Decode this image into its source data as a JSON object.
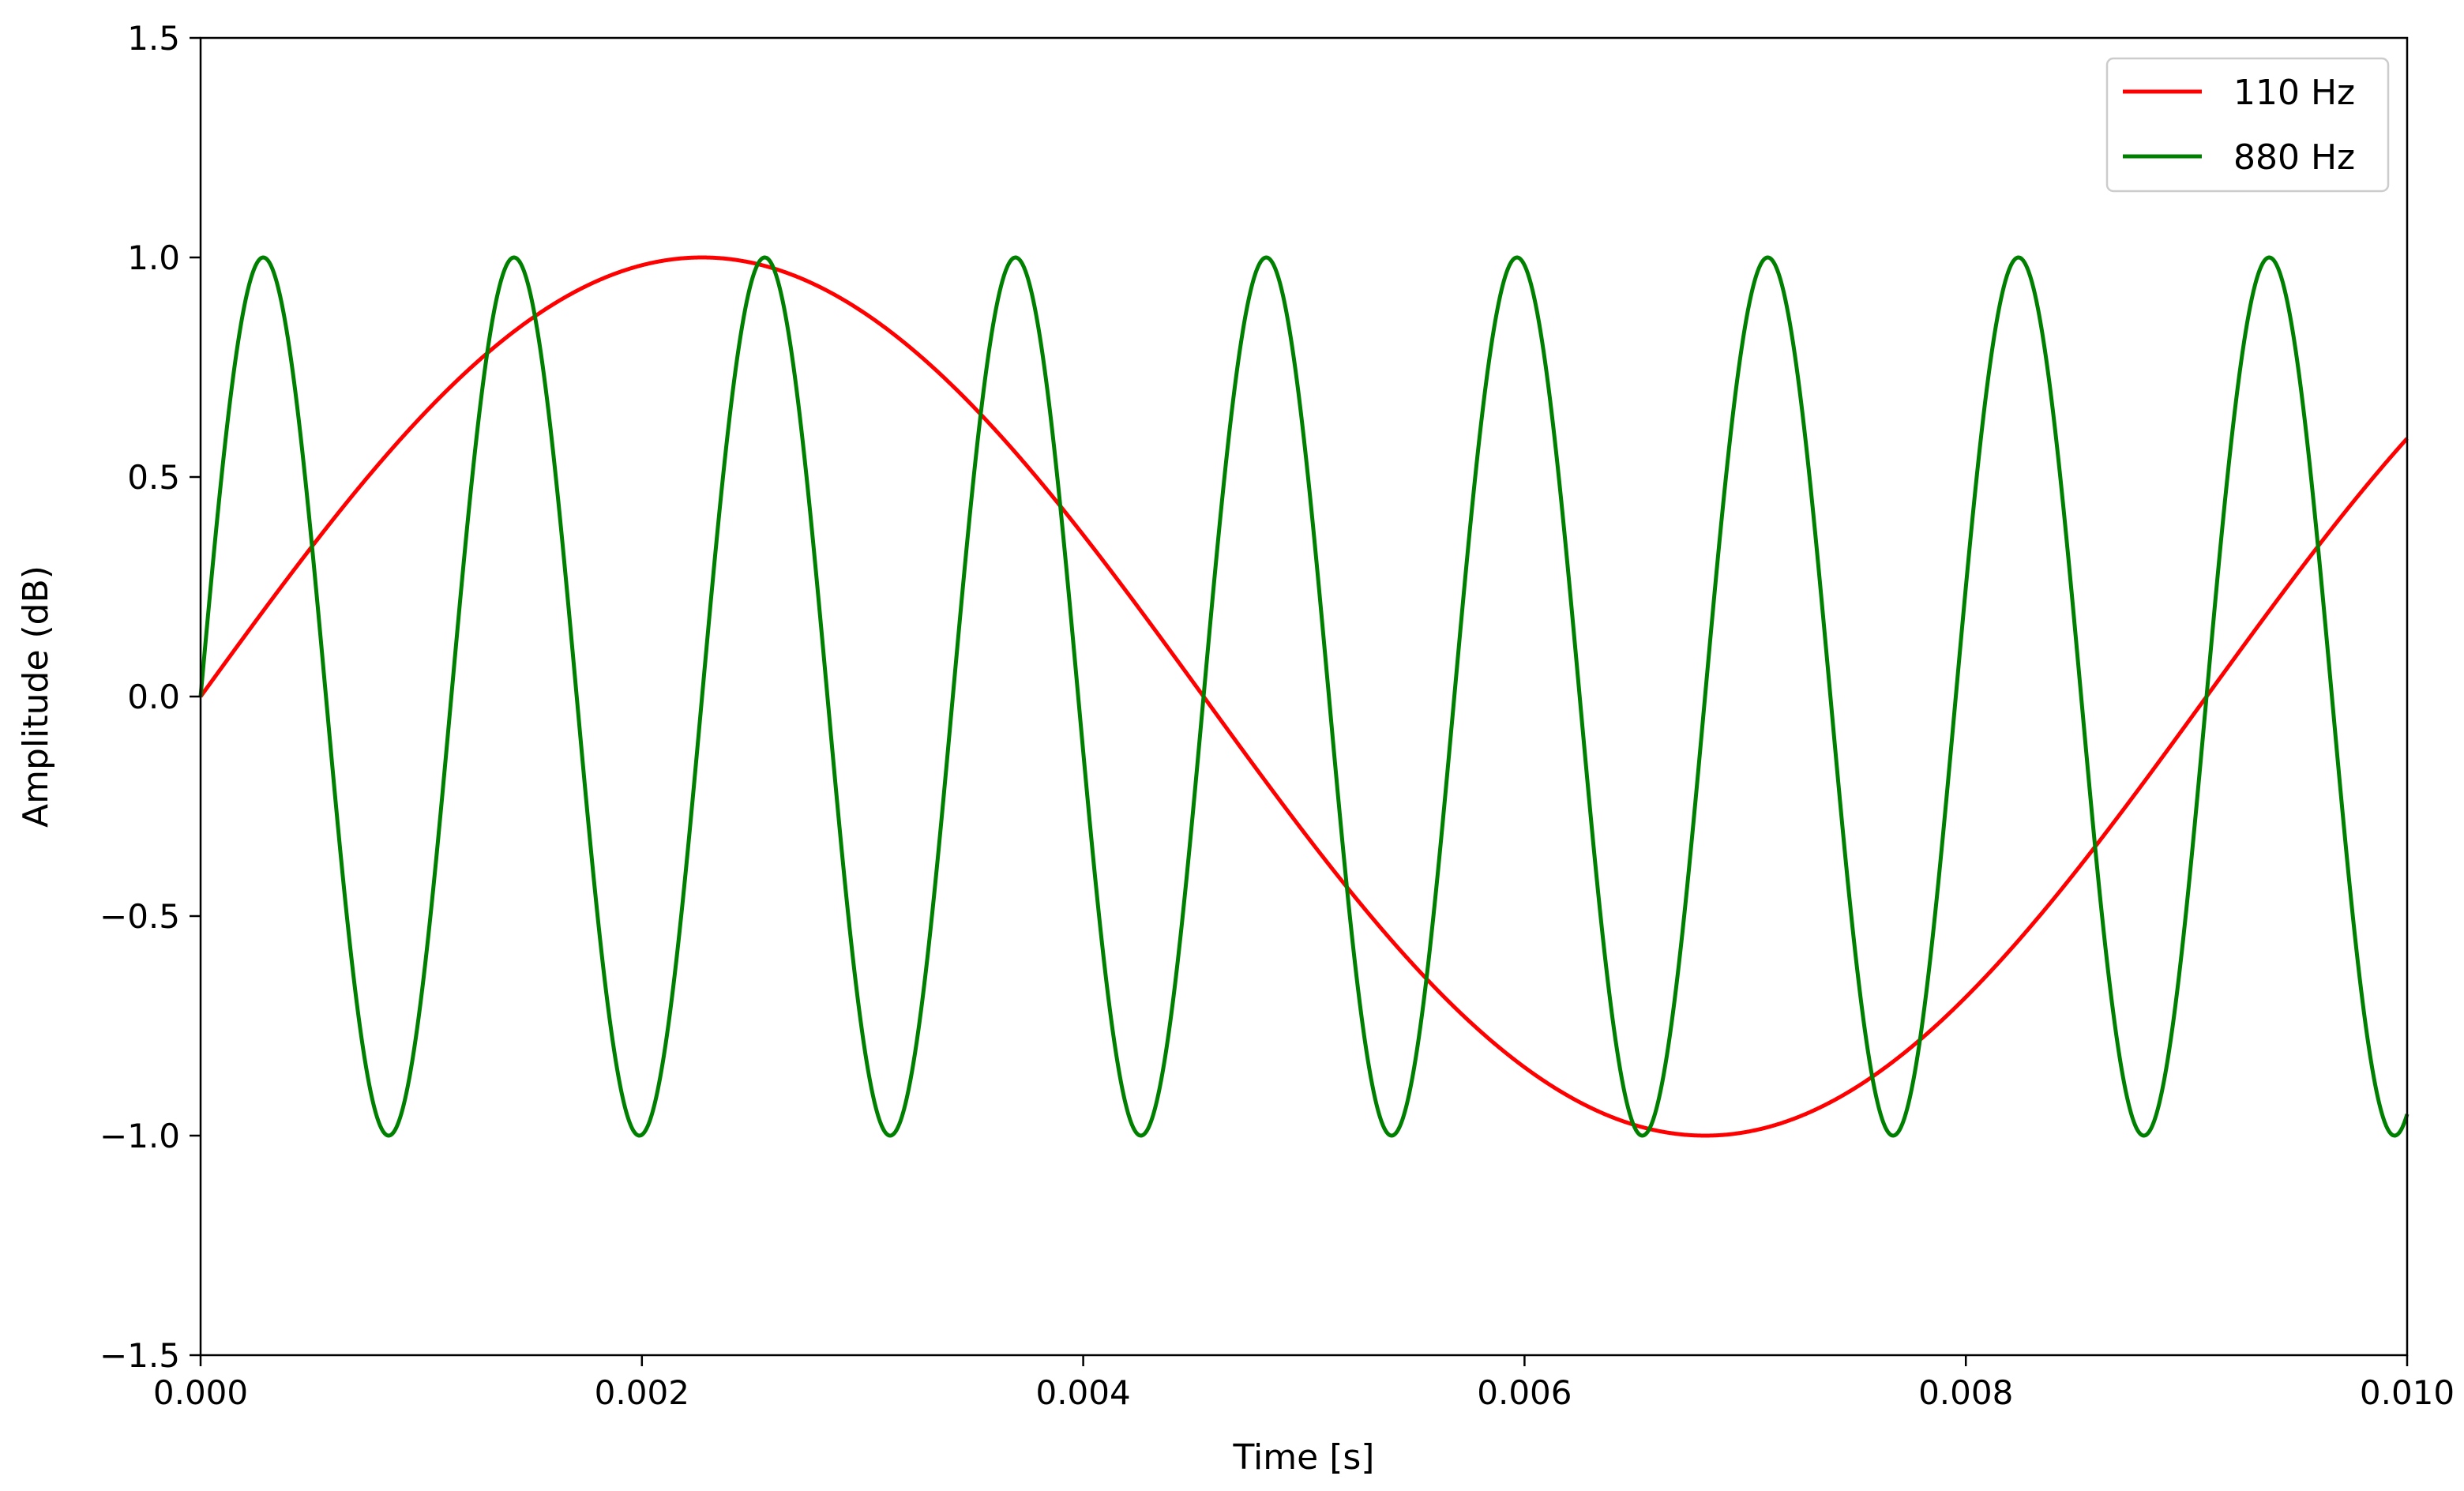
{
  "chart_data": {
    "type": "line",
    "xlabel": "Time [s]",
    "ylabel": "Amplitude (dB)",
    "xlim": [
      0.0,
      0.01
    ],
    "ylim": [
      -1.5,
      1.5
    ],
    "x_ticks": [
      "0.000",
      "0.002",
      "0.004",
      "0.006",
      "0.008",
      "0.010"
    ],
    "x_tick_values": [
      0.0,
      0.002,
      0.004,
      0.006,
      0.008,
      0.01
    ],
    "y_ticks": [
      "−1.5",
      "−1.0",
      "−0.5",
      "0.0",
      "0.5",
      "1.0",
      "1.5"
    ],
    "y_tick_values": [
      -1.5,
      -1.0,
      -0.5,
      0.0,
      0.5,
      1.0,
      1.5
    ],
    "grid": false,
    "legend_position": "top-right",
    "series": [
      {
        "name": "110 Hz",
        "frequency_hz": 110,
        "amplitude": 1.0,
        "color": "#ff0000"
      },
      {
        "name": "880 Hz",
        "frequency_hz": 880,
        "amplitude": 1.0,
        "color": "#008000"
      }
    ]
  }
}
